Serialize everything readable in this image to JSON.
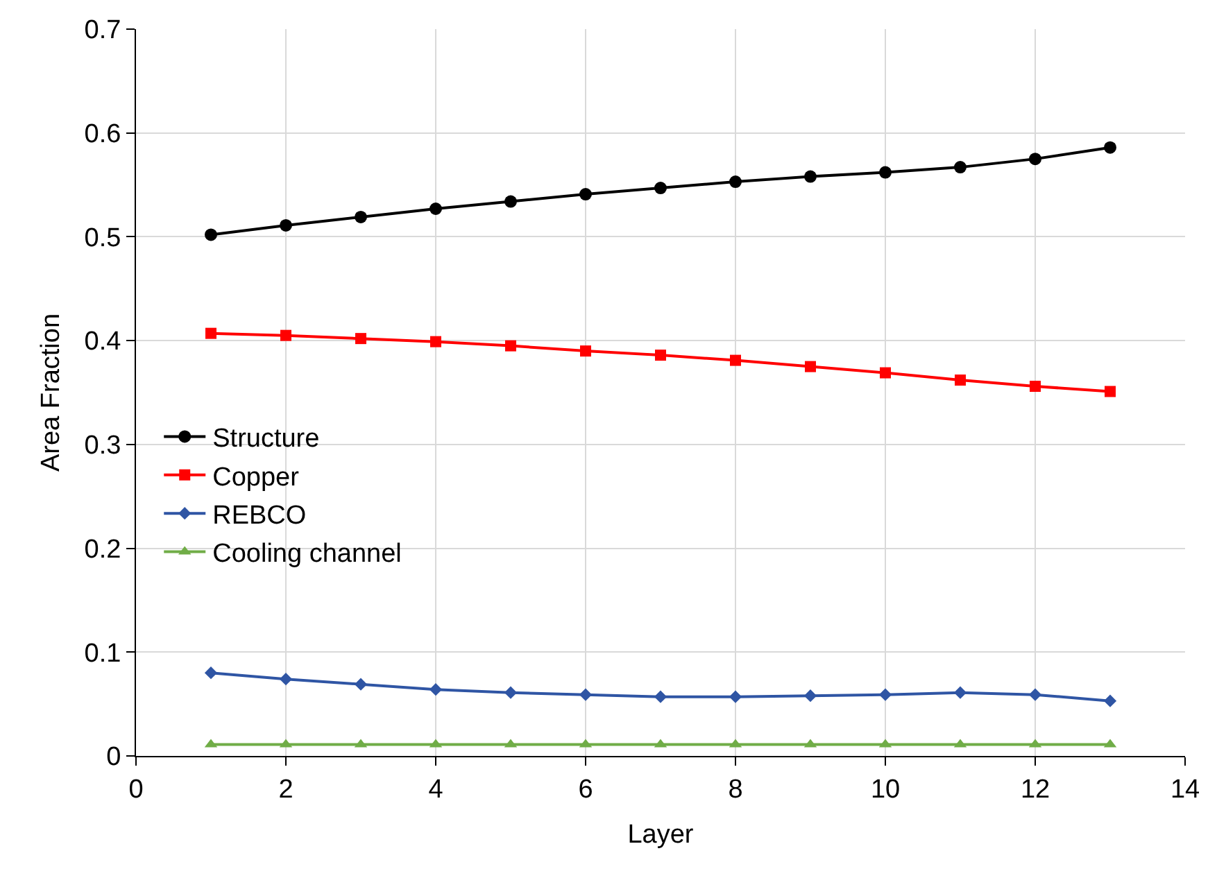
{
  "chart_data": {
    "type": "line",
    "xlabel": "Layer",
    "ylabel": "Area Fraction",
    "x": [
      1,
      2,
      3,
      4,
      5,
      6,
      7,
      8,
      9,
      10,
      11,
      12,
      13
    ],
    "xlim": [
      0,
      14
    ],
    "xticks": [
      0,
      2,
      4,
      6,
      8,
      10,
      12,
      14
    ],
    "ylim": [
      0,
      0.7
    ],
    "yticks": [
      0,
      0.1,
      0.2,
      0.3,
      0.4,
      0.5,
      0.6,
      0.7
    ],
    "grid": true,
    "legend": "left",
    "line_style": "solid",
    "series": [
      {
        "name": "Structure",
        "color": "#000000",
        "marker": "circle",
        "values": [
          0.502,
          0.511,
          0.519,
          0.527,
          0.534,
          0.541,
          0.547,
          0.553,
          0.558,
          0.562,
          0.567,
          0.575,
          0.586
        ]
      },
      {
        "name": "Copper",
        "color": "#ff0000",
        "marker": "square",
        "values": [
          0.407,
          0.405,
          0.402,
          0.399,
          0.395,
          0.39,
          0.386,
          0.381,
          0.375,
          0.369,
          0.362,
          0.356,
          0.351
        ]
      },
      {
        "name": "REBCO",
        "color": "#2f55a4",
        "marker": "diamond",
        "values": [
          0.08,
          0.074,
          0.069,
          0.064,
          0.061,
          0.059,
          0.057,
          0.057,
          0.058,
          0.059,
          0.061,
          0.059,
          0.053
        ]
      },
      {
        "name": "Cooling channel",
        "color": "#70ad47",
        "marker": "triangle",
        "values": [
          0.011,
          0.011,
          0.011,
          0.011,
          0.011,
          0.011,
          0.011,
          0.011,
          0.011,
          0.011,
          0.011,
          0.011,
          0.011
        ]
      }
    ]
  }
}
